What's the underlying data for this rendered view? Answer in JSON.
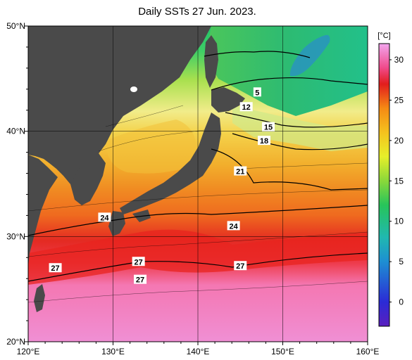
{
  "title": "Daily SSTs 27 Jun. 2023.",
  "map": {
    "lon_range": [
      120,
      160
    ],
    "lat_range": [
      20,
      50
    ],
    "lon_ticks": [
      {
        "lon": 120,
        "label": "120°E"
      },
      {
        "lon": 130,
        "label": "130°E"
      },
      {
        "lon": 140,
        "label": "140°E"
      },
      {
        "lon": 150,
        "label": "150°E"
      },
      {
        "lon": 160,
        "label": "160°E"
      }
    ],
    "lat_ticks": [
      {
        "lat": 20,
        "label": "20°N"
      },
      {
        "lat": 30,
        "label": "30°N"
      },
      {
        "lat": 40,
        "label": "40°N"
      },
      {
        "lat": 50,
        "label": "50°N"
      }
    ],
    "land_color": "#4a4a4a",
    "contour_labels": [
      {
        "text": "5",
        "lon": 147.0,
        "lat": 43.7
      },
      {
        "text": "12",
        "lon": 145.7,
        "lat": 42.3
      },
      {
        "text": "15",
        "lon": 148.3,
        "lat": 40.4
      },
      {
        "text": "18",
        "lon": 147.8,
        "lat": 39.1
      },
      {
        "text": "21",
        "lon": 145.0,
        "lat": 36.2
      },
      {
        "text": "24",
        "lon": 129.0,
        "lat": 31.8
      },
      {
        "text": "24",
        "lon": 144.2,
        "lat": 31.0
      },
      {
        "text": "27",
        "lon": 123.2,
        "lat": 27.0
      },
      {
        "text": "27",
        "lon": 133.0,
        "lat": 27.6
      },
      {
        "text": "27",
        "lon": 133.2,
        "lat": 25.9
      },
      {
        "text": "27",
        "lon": 145.0,
        "lat": 27.2
      }
    ]
  },
  "colorbar": {
    "unit": "[°C]",
    "range": [
      -3,
      32
    ],
    "ticks": [
      0,
      5,
      10,
      15,
      20,
      25,
      30
    ],
    "stops": [
      {
        "v": -3,
        "color": "#5a1fbf"
      },
      {
        "v": 0,
        "color": "#2b2bd6"
      },
      {
        "v": 5,
        "color": "#1e8fd2"
      },
      {
        "v": 8,
        "color": "#20b8b0"
      },
      {
        "v": 12,
        "color": "#27c45a"
      },
      {
        "v": 15,
        "color": "#8ad83a"
      },
      {
        "v": 18,
        "color": "#e6ef2a"
      },
      {
        "v": 21,
        "color": "#f5c21e"
      },
      {
        "v": 24,
        "color": "#f58a14"
      },
      {
        "v": 27,
        "color": "#e21d1d"
      },
      {
        "v": 29,
        "color": "#f04a8a"
      },
      {
        "v": 32,
        "color": "#f2a6ee"
      }
    ]
  }
}
